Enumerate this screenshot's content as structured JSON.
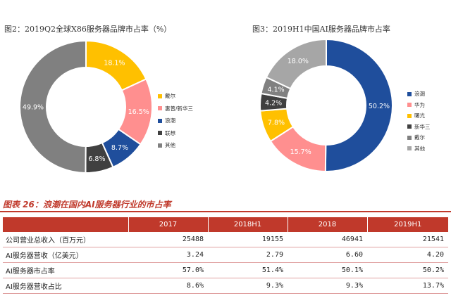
{
  "chart_data": [
    {
      "type": "pie",
      "title": "图2：2019Q2全球X86服务器品牌市占率（%）",
      "categories": [
        "戴尔",
        "惠普/新华三",
        "浪潮",
        "联想",
        "其他"
      ],
      "values": [
        18.1,
        16.5,
        8.7,
        6.8,
        49.9
      ],
      "value_labels": [
        "18.1%",
        "16.5%",
        "8.7%",
        "6.8%",
        "49.9%"
      ],
      "colors": [
        "#FFC000",
        "#FF8F8F",
        "#1F4E9C",
        "#404040",
        "#808080"
      ],
      "legend": "right"
    },
    {
      "type": "pie",
      "title": "图3：2019H1中国AI服务器品牌市占率",
      "categories": [
        "浪潮",
        "华为",
        "曙光",
        "新华三",
        "戴尔",
        "其他"
      ],
      "values": [
        50.2,
        15.7,
        7.8,
        4.2,
        4.1,
        18.0
      ],
      "value_labels": [
        "50.2%",
        "15.7%",
        "7.8%",
        "4.2%",
        "4.1%",
        "18.0%"
      ],
      "colors": [
        "#1F4E9C",
        "#FF8F8F",
        "#FFC000",
        "#404040",
        "#808080",
        "#A6A6A6"
      ],
      "legend": "right"
    },
    {
      "type": "table",
      "title": "图表 26：浪潮在国内AI服务器行业的市占率",
      "columns": [
        "",
        "2017",
        "2018H1",
        "2018",
        "2019H1"
      ],
      "rows": [
        [
          "公司营业总收入（百万元）",
          "25488",
          "19155",
          "46941",
          "21541"
        ],
        [
          "AI服务器营收（亿美元）",
          "3.24",
          "2.79",
          "6.60",
          "4.20"
        ],
        [
          "AI服务器市占率",
          "57.0%",
          "51.4%",
          "50.1%",
          "50.2%"
        ],
        [
          "AI服务器营收占比",
          "8.6%",
          "9.3%",
          "9.3%",
          "13.7%"
        ]
      ]
    }
  ]
}
